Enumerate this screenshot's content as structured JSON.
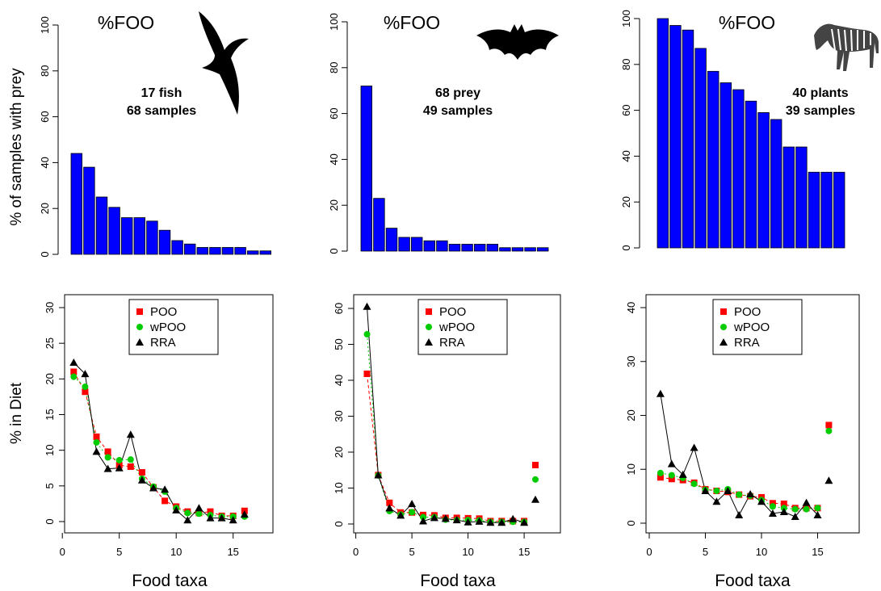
{
  "colors": {
    "bar": "#0000ff",
    "poo": "#ff0000",
    "wpoo": "#00cc00",
    "rra": "#000000"
  },
  "icons": {
    "left": "seabird-silhouette-icon",
    "middle": "bat-silhouette-icon",
    "right": "zebra-icon"
  },
  "chart_data": [
    {
      "type": "bar",
      "panel": "top-left",
      "title": "%FOO",
      "annotation": [
        "17 fish",
        "68 samples"
      ],
      "ylabel": "% of samples with prey",
      "xlabel": "",
      "ylim": [
        0,
        100
      ],
      "yticks": [
        0,
        20,
        40,
        60,
        80,
        100
      ],
      "values": [
        44,
        38,
        25,
        20.5,
        16,
        16,
        14.5,
        10.5,
        6,
        4.5,
        3,
        3,
        3,
        3,
        1.5,
        1.5
      ]
    },
    {
      "type": "bar",
      "panel": "top-middle",
      "title": "%FOO",
      "annotation": [
        "68 prey",
        "49 samples"
      ],
      "ylabel": "",
      "xlabel": "",
      "ylim": [
        0,
        100
      ],
      "yticks": [
        0,
        20,
        40,
        60,
        80,
        100
      ],
      "values": [
        72,
        23,
        10,
        6,
        6,
        4.5,
        4.5,
        3,
        3,
        3,
        3,
        1.5,
        1.5,
        1.5,
        1.5
      ]
    },
    {
      "type": "bar",
      "panel": "top-right",
      "title": "%FOO",
      "annotation": [
        "40 plants",
        "39 samples"
      ],
      "ylabel": "",
      "xlabel": "",
      "ylim": [
        0,
        100
      ],
      "yticks": [
        0,
        20,
        40,
        60,
        80,
        100
      ],
      "values": [
        100,
        97,
        95,
        87,
        77,
        72,
        69,
        64,
        59,
        56,
        44,
        44,
        33,
        33,
        33
      ]
    },
    {
      "type": "line",
      "panel": "bottom-left",
      "title": "",
      "xlabel": "Food taxa",
      "ylabel": "% in Diet",
      "xlim": [
        0,
        16
      ],
      "xticks": [
        0,
        5,
        10,
        15
      ],
      "ylim": [
        0,
        30
      ],
      "yticks": [
        0,
        5,
        10,
        15,
        20,
        25,
        30
      ],
      "legend": {
        "position": "top-center",
        "entries": [
          "POO",
          "wPOO",
          "RRA"
        ]
      },
      "x": [
        1,
        2,
        3,
        4,
        5,
        6,
        7,
        8,
        9,
        10,
        11,
        12,
        13,
        14,
        15,
        16
      ],
      "series": [
        {
          "name": "POO",
          "marker": "square",
          "values": [
            21,
            18.2,
            11.9,
            9.8,
            7.9,
            7.7,
            6.9,
            4.8,
            2.9,
            2.1,
            1.4,
            1.2,
            1.4,
            0.8,
            0.8,
            1.5
          ]
        },
        {
          "name": "wPOO",
          "marker": "circle",
          "values": [
            20.3,
            18.9,
            11.1,
            9,
            8.6,
            8.7,
            6,
            4.9,
            4.2,
            1.9,
            1.2,
            1.1,
            0.9,
            0.7,
            0.7,
            0.7
          ]
        },
        {
          "name": "RRA",
          "marker": "triangle",
          "values": [
            22.3,
            20.7,
            9.8,
            7.4,
            7.5,
            12.2,
            5.8,
            4.7,
            4.5,
            1.6,
            0.2,
            1.9,
            0.5,
            0.5,
            0.2,
            1
          ]
        }
      ]
    },
    {
      "type": "line",
      "panel": "bottom-middle",
      "title": "",
      "xlabel": "Food taxa",
      "ylabel": "",
      "xlim": [
        0,
        16
      ],
      "xticks": [
        0,
        5,
        10,
        15
      ],
      "ylim": [
        0,
        60
      ],
      "yticks": [
        0,
        10,
        20,
        30,
        40,
        50,
        60
      ],
      "legend": {
        "position": "top-center",
        "entries": [
          "POO",
          "wPOO",
          "RRA"
        ]
      },
      "x": [
        1,
        2,
        3,
        4,
        5,
        6,
        7,
        8,
        9,
        10,
        11,
        12,
        13,
        14,
        15,
        16
      ],
      "series": [
        {
          "name": "POO",
          "marker": "square",
          "values": [
            41.8,
            13.6,
            5.9,
            3.2,
            3.2,
            2.5,
            2.4,
            1.7,
            1.7,
            1.6,
            1.5,
            0.8,
            0.8,
            0.8,
            0.8,
            16.4
          ]
        },
        {
          "name": "wPOO",
          "marker": "circle",
          "values": [
            52.8,
            13.5,
            3.6,
            2.6,
            3.3,
            1.9,
            1.9,
            1.2,
            1.1,
            1.1,
            1,
            0.6,
            0.6,
            0.6,
            0.6,
            12.4
          ]
        },
        {
          "name": "RRA",
          "marker": "triangle",
          "values": [
            60.5,
            13.6,
            4.4,
            2.4,
            5.6,
            0.8,
            1.7,
            1.5,
            1.1,
            0.5,
            0.7,
            0.4,
            0.4,
            1.4,
            0.4,
            6.8
          ]
        }
      ]
    },
    {
      "type": "line",
      "panel": "bottom-right",
      "title": "",
      "xlabel": "Food taxa",
      "ylabel": "",
      "xlim": [
        0,
        16
      ],
      "xticks": [
        0,
        5,
        10,
        15
      ],
      "ylim": [
        0,
        40
      ],
      "yticks": [
        0,
        10,
        20,
        30,
        40
      ],
      "legend": {
        "position": "top-center",
        "entries": [
          "POO",
          "wPOO",
          "RRA"
        ]
      },
      "x": [
        1,
        2,
        3,
        4,
        5,
        6,
        7,
        8,
        9,
        10,
        11,
        12,
        13,
        14,
        15,
        16
      ],
      "series": [
        {
          "name": "POO",
          "marker": "square",
          "values": [
            8.5,
            8.2,
            8,
            7.5,
            6.3,
            6,
            5.8,
            5.3,
            5,
            4.8,
            3.7,
            3.6,
            2.8,
            2.8,
            2.8,
            18.2
          ]
        },
        {
          "name": "wPOO",
          "marker": "circle",
          "values": [
            9.3,
            8.9,
            8.4,
            7.3,
            6.2,
            6,
            6.3,
            5.3,
            5.1,
            4.3,
            3.1,
            2.8,
            2.6,
            2.6,
            2.8,
            17.1
          ]
        },
        {
          "name": "RRA",
          "marker": "triangle",
          "values": [
            24,
            11,
            9,
            14,
            6,
            4,
            6,
            1.5,
            5.4,
            4,
            1.8,
            2.1,
            1.2,
            3.8,
            1.5,
            7.9
          ]
        }
      ]
    }
  ]
}
